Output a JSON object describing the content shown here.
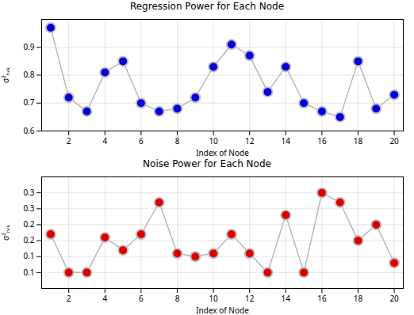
{
  "chart_data": [
    {
      "type": "scatter",
      "title": "Regression Power for Each Node",
      "xlabel": "Index of Node",
      "ylabel": "σ²ₕ,ₖ",
      "x": [
        1,
        2,
        3,
        4,
        5,
        6,
        7,
        8,
        9,
        10,
        11,
        12,
        13,
        14,
        15,
        16,
        17,
        18,
        19,
        20
      ],
      "series": [
        {
          "name": "σ²ₕ,ₖ",
          "color": "#0000dd",
          "marker": "circle",
          "line_style": "solid",
          "values": [
            0.97,
            0.72,
            0.67,
            0.81,
            0.85,
            0.7,
            0.67,
            0.68,
            0.72,
            0.83,
            0.91,
            0.87,
            0.74,
            0.83,
            0.7,
            0.67,
            0.65,
            0.85,
            0.68,
            0.73
          ]
        }
      ],
      "xlim": [
        0.5,
        20.5
      ],
      "xticks": [
        2,
        4,
        6,
        8,
        10,
        12,
        14,
        16,
        18,
        20
      ],
      "ylim": [
        0.6,
        1.0
      ],
      "yticks": [
        0.6,
        0.7,
        0.8,
        0.9
      ],
      "grid": true
    },
    {
      "type": "scatter",
      "title": "Noise Power for Each Node",
      "xlabel": "Index of Node",
      "ylabel": "σ²ₙ,ₖ",
      "x": [
        1,
        2,
        3,
        4,
        5,
        6,
        7,
        8,
        9,
        10,
        11,
        12,
        13,
        14,
        15,
        16,
        17,
        18,
        19,
        20
      ],
      "series": [
        {
          "name": "σ²ₙ,ₖ",
          "color": "#dd0000",
          "marker": "circle",
          "line_style": "solid",
          "values": [
            0.22,
            0.1,
            0.1,
            0.21,
            0.17,
            0.22,
            0.32,
            0.16,
            0.15,
            0.16,
            0.22,
            0.16,
            0.1,
            0.28,
            0.1,
            0.35,
            0.32,
            0.2,
            0.25,
            0.13
          ]
        }
      ],
      "xlim": [
        0.5,
        20.5
      ],
      "xticks": [
        2,
        4,
        6,
        8,
        10,
        12,
        14,
        16,
        18,
        20
      ],
      "ylim": [
        0.05,
        0.4
      ],
      "yticks": [
        0.1,
        {
          "value": 0.15,
          "label": "0.1"
        },
        0.2,
        {
          "value": 0.25,
          "label": "0.2"
        },
        0.3,
        {
          "value": 0.35,
          "label": "0.3"
        }
      ],
      "grid": true
    }
  ]
}
